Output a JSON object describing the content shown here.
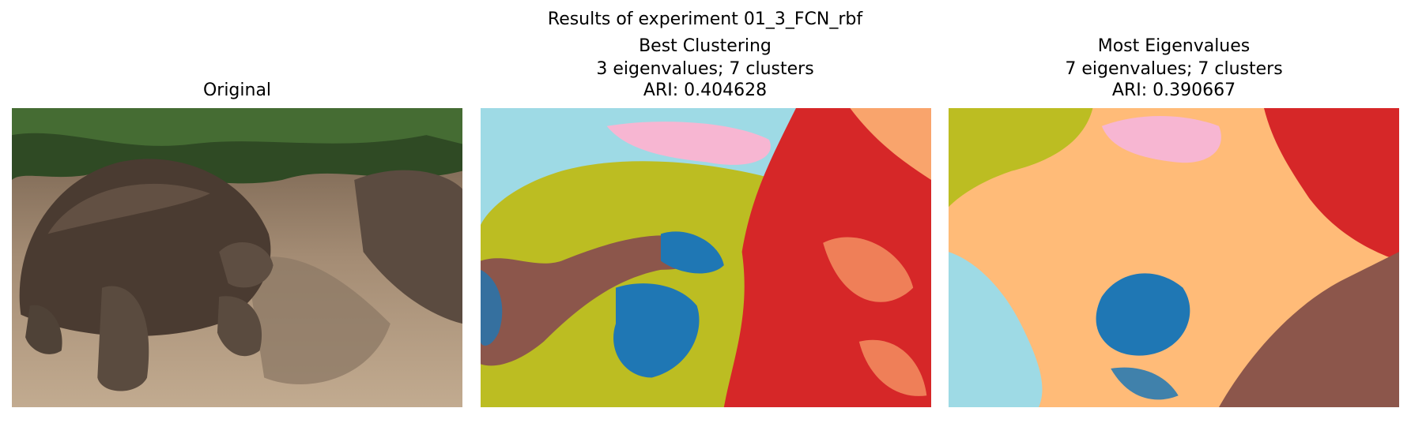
{
  "figure_title": "Results of experiment 01_3_FCN_rbf",
  "panels": [
    {
      "title_lines": [
        "Original"
      ]
    },
    {
      "title_lines": [
        "Best Clustering",
        "3 eigenvalues; 7 clusters",
        "ARI: 0.404628"
      ]
    },
    {
      "title_lines": [
        "Most Eigenvalues",
        "7 eigenvalues; 7 clusters",
        "ARI: 0.390667"
      ]
    }
  ]
}
